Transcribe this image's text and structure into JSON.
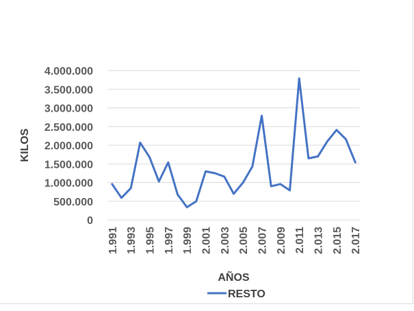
{
  "chart_data": {
    "type": "line",
    "title": "",
    "xlabel": "AÑOS",
    "ylabel": "KILOS",
    "x": [
      "1.991",
      "1.992",
      "1.993",
      "1.994",
      "1.995",
      "1.996",
      "1.997",
      "1.998",
      "1.999",
      "2.000",
      "2.001",
      "2.002",
      "2.003",
      "2.004",
      "2.005",
      "2.006",
      "2.007",
      "2.008",
      "2.009",
      "2.010",
      "2.011",
      "2.012",
      "2.013",
      "2.014",
      "2.015",
      "2.016",
      "2.017"
    ],
    "x_tick_labels": [
      "1.991",
      "1.993",
      "1.995",
      "1.997",
      "1.999",
      "2.001",
      "2.003",
      "2.005",
      "2.007",
      "2.009",
      "2.011",
      "2.013",
      "2.015",
      "2.017"
    ],
    "y_tick_labels": [
      "0",
      "500.000",
      "1.000.000",
      "1.500.000",
      "2.000.000",
      "2.500.000",
      "3.000.000",
      "3.500.000",
      "4.000.000"
    ],
    "ylim": [
      0,
      4000000
    ],
    "grid": true,
    "legend_position": "bottom",
    "series": [
      {
        "name": "RESTO",
        "color": "#4472c4",
        "values": [
          960000,
          590000,
          850000,
          2070000,
          1680000,
          1030000,
          1540000,
          680000,
          340000,
          500000,
          1300000,
          1250000,
          1160000,
          700000,
          1000000,
          1430000,
          2790000,
          900000,
          960000,
          790000,
          3790000,
          1650000,
          1700000,
          2100000,
          2410000,
          2160000,
          1540000
        ]
      }
    ]
  }
}
